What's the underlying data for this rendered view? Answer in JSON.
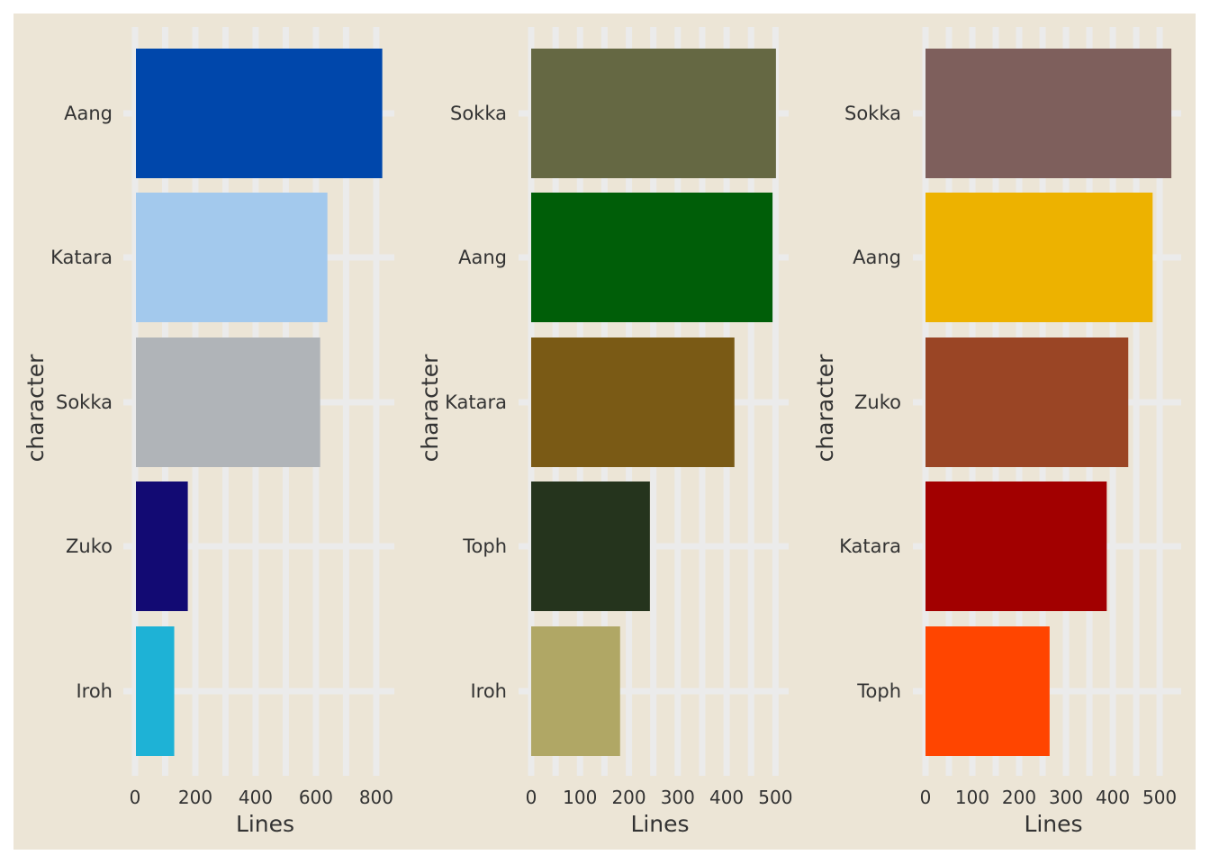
{
  "chart_data": [
    {
      "type": "bar",
      "orientation": "horizontal",
      "categories": [
        "Aang",
        "Katara",
        "Sokka",
        "Zuko",
        "Iroh"
      ],
      "values": [
        820,
        638,
        614,
        175,
        130
      ],
      "colors": [
        "#0047ab",
        "#a3c9ed",
        "#b0b4b8",
        "#120a73",
        "#1eb2d6"
      ],
      "xlabel": "Lines",
      "ylabel": "character",
      "xlim": [
        0,
        860
      ],
      "xticks": [
        0,
        200,
        400,
        600,
        800
      ],
      "grid": true
    },
    {
      "type": "bar",
      "orientation": "horizontal",
      "categories": [
        "Sokka",
        "Aang",
        "Katara",
        "Toph",
        "Iroh"
      ],
      "values": [
        501,
        494,
        416,
        243,
        182
      ],
      "colors": [
        "#656843",
        "#005e08",
        "#7a5a15",
        "#25341d",
        "#b0a765"
      ],
      "xlabel": "Lines",
      "ylabel": "character",
      "xlim": [
        0,
        527
      ],
      "xticks": [
        0,
        100,
        200,
        300,
        400,
        500
      ],
      "grid": true
    },
    {
      "type": "bar",
      "orientation": "horizontal",
      "categories": [
        "Sokka",
        "Aang",
        "Zuko",
        "Katara",
        "Toph"
      ],
      "values": [
        525,
        485,
        433,
        387,
        265
      ],
      "colors": [
        "#7e5f5c",
        "#edb200",
        "#9a4525",
        "#a20000",
        "#ff4500"
      ],
      "xlabel": "Lines",
      "ylabel": "character",
      "xlim": [
        0,
        546
      ],
      "xticks": [
        0,
        100,
        200,
        300,
        400,
        500
      ],
      "grid": true
    }
  ]
}
